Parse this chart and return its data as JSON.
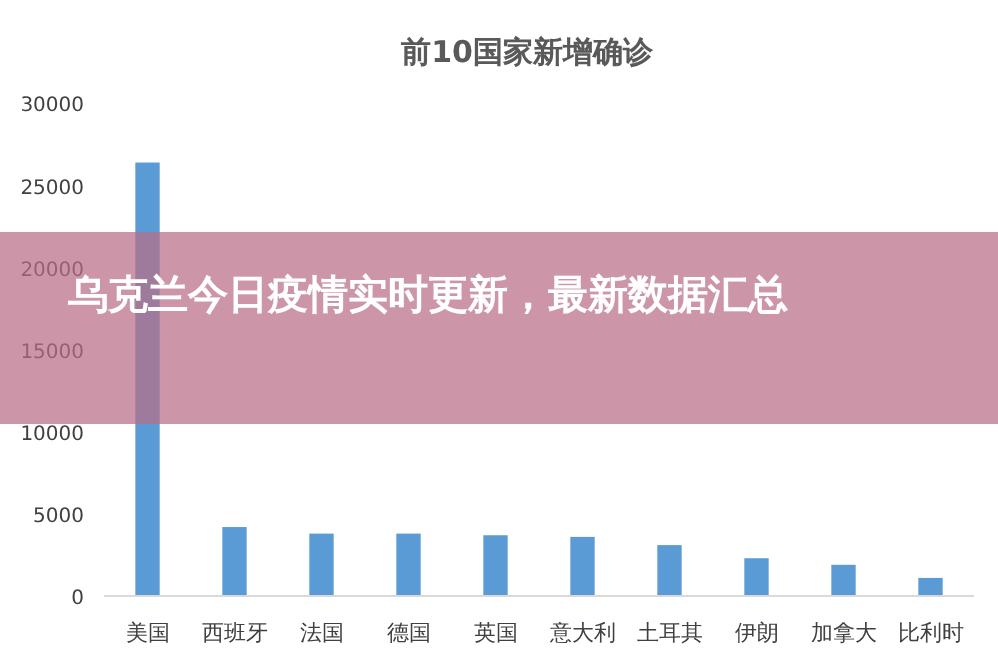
{
  "chart_data": {
    "type": "bar",
    "title": "前10国家新增确诊",
    "categories": [
      "美国",
      "西班牙",
      "法国",
      "德国",
      "英国",
      "意大利",
      "土耳其",
      "伊朗",
      "加拿大",
      "比利时"
    ],
    "values": [
      26400,
      4200,
      3800,
      3800,
      3700,
      3600,
      3100,
      2300,
      1900,
      1100
    ],
    "color": "#5b9bd5",
    "ylim": [
      0,
      30000
    ],
    "yticks": [
      0,
      5000,
      10000,
      15000,
      20000,
      25000,
      30000
    ],
    "grid": false,
    "annotations": [
      "乌克兰今日疫情实时更新，最新数据汇总"
    ]
  }
}
